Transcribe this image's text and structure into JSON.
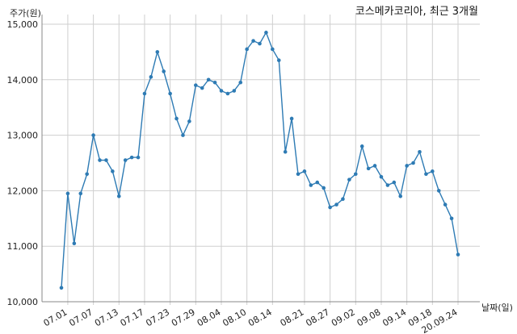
{
  "chart_data": {
    "type": "line",
    "title": "코스메카코리아, 최근 3개월",
    "ylabel": "주가(원)",
    "xlabel": "날짜(일)",
    "ylim": [
      10000,
      15000
    ],
    "yticks": [
      10000,
      11000,
      12000,
      13000,
      14000,
      15000
    ],
    "ytick_labels": [
      "10,000",
      "11,000",
      "12,000",
      "13,000",
      "14,000",
      "15,000"
    ],
    "xtick_labels": [
      "07.01",
      "07.07",
      "07.13",
      "07.17",
      "07.23",
      "07.29",
      "08.04",
      "08.10",
      "08.14",
      "08.21",
      "08.27",
      "09.02",
      "09.08",
      "09.14",
      "09.18",
      "20.09.24"
    ],
    "xtick_index": [
      1,
      5,
      9,
      13,
      17,
      21,
      25,
      29,
      33,
      38,
      42,
      46,
      50,
      54,
      58,
      62
    ],
    "grid": true,
    "line_color": "#2e7bb4",
    "series": [
      {
        "values": [
          10250,
          11950,
          11050,
          11950,
          12300,
          13000,
          12550,
          12550,
          12350,
          11900,
          12550,
          12600,
          12600,
          13750,
          14050,
          14500,
          14150,
          13750,
          13300,
          13000,
          13250,
          13900,
          13850,
          14000,
          13950,
          13800,
          13750,
          13800,
          13950,
          14550,
          14700,
          14650,
          14850,
          14550,
          14350,
          12700,
          13300,
          12300,
          12350,
          12100,
          12150,
          12050,
          11700,
          11750,
          11850,
          12200,
          12300,
          12800,
          12400,
          12450,
          12250,
          12100,
          12150,
          11900,
          12450,
          12500,
          12700,
          12300,
          12350,
          12000,
          11750,
          11500,
          10850
        ]
      }
    ]
  }
}
